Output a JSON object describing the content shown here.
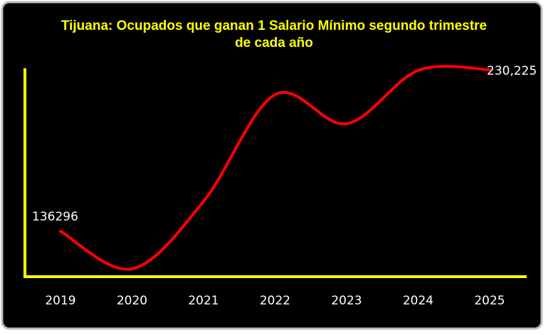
{
  "chart_data": {
    "type": "line",
    "title": "Tijuana: Ocupados que ganan 1 Salario Mínimo segundo trimestre de cada año",
    "categories": [
      "2019",
      "2020",
      "2021",
      "2022",
      "2023",
      "2024",
      "2025"
    ],
    "values": [
      136296,
      114400,
      153700,
      215700,
      198800,
      229800,
      230225
    ],
    "value_labels": [
      "136296",
      null,
      null,
      null,
      null,
      null,
      "230,225"
    ],
    "color": "#ff0000",
    "axis_color": "#ffff00",
    "title_color": "#ffff00"
  }
}
